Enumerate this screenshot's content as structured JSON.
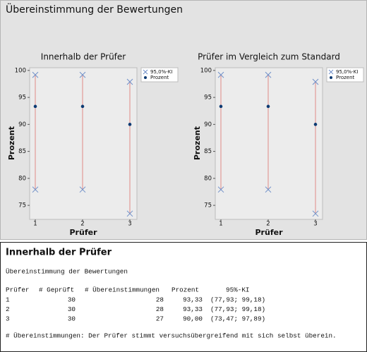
{
  "header": {
    "title": "Übereinstimmung der Bewertungen"
  },
  "chart_data": [
    {
      "type": "interval",
      "title": "Innerhalb der Prüfer",
      "x_label": "Prüfer",
      "y_label": "Prozent",
      "categories": [
        "1",
        "2",
        "3"
      ],
      "ylim": [
        72.4,
        100.5
      ],
      "yticks": [
        75,
        80,
        85,
        90,
        95,
        100
      ],
      "interval_color": "#e08a86",
      "series": [
        {
          "name": "95,0%-KI",
          "color": "#6f8fc9",
          "lower": [
            77.93,
            77.93,
            73.47
          ],
          "upper": [
            99.18,
            99.18,
            97.89
          ]
        },
        {
          "name": "Prozent",
          "color": "#0d3b73",
          "values": [
            93.33,
            93.33,
            90.0
          ]
        }
      ]
    },
    {
      "type": "interval",
      "title": "Prüfer im Vergleich zum Standard",
      "x_label": "Prüfer",
      "y_label": "Prozent",
      "categories": [
        "1",
        "2",
        "3"
      ],
      "ylim": [
        72.4,
        100.5
      ],
      "yticks": [
        75,
        80,
        85,
        90,
        95,
        100
      ],
      "interval_color": "#e08a86",
      "series": [
        {
          "name": "95,0%-KI",
          "color": "#6f8fc9",
          "lower": [
            77.93,
            77.93,
            73.47
          ],
          "upper": [
            99.18,
            99.18,
            97.89
          ]
        },
        {
          "name": "Prozent",
          "color": "#0d3b73",
          "values": [
            93.33,
            93.33,
            90.0
          ]
        }
      ]
    }
  ],
  "session": {
    "title": "Innerhalb der Prüfer",
    "subtitle": "Übereinstimmung der Bewertungen",
    "table": {
      "columns": [
        "Prüfer",
        "# Geprüft",
        "# Übereinstimmungen",
        "Prozent",
        "95%-KI"
      ],
      "rows": [
        [
          1,
          30,
          28,
          "93,33",
          "(77,93; 99,18)"
        ],
        [
          2,
          30,
          28,
          "93,33",
          "(77,93; 99,18)"
        ],
        [
          3,
          30,
          27,
          "90,00",
          "(73,47; 97,89)"
        ]
      ]
    },
    "note": "# Übereinstimmungen: Der Prüfer stimmt versuchsübergreifend mit sich selbst überein."
  }
}
